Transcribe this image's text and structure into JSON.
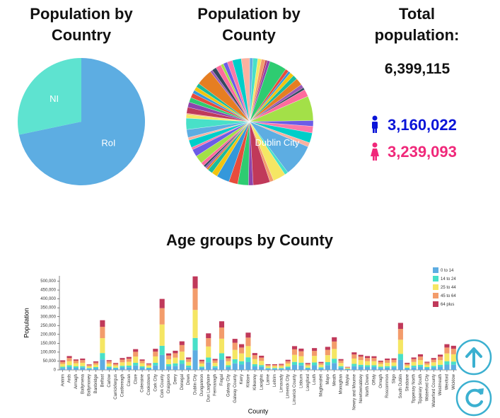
{
  "chart_data": [
    {
      "type": "pie",
      "title": "Population by Country",
      "categories": [
        "RoI",
        "NI"
      ],
      "values": [
        4588252,
        1810863
      ],
      "colors": [
        "#5dade2",
        "#5ee3d0"
      ]
    },
    {
      "type": "pie",
      "title": "Population by County",
      "label": "Dublin City",
      "colors": [
        "#5dade2",
        "#48e0c8",
        "#f5e663",
        "#f39c6b",
        "#c0395a",
        "#8e44ad",
        "#2ecc71",
        "#e74c3c",
        "#3498db",
        "#f1c40f",
        "#1abc9c",
        "#e67e22",
        "#9b59b6",
        "#34495e",
        "#ff6b9d",
        "#a3e048",
        "#6c5ce7",
        "#fd79a8",
        "#00cec9",
        "#fab1a0"
      ]
    },
    {
      "type": "bar",
      "title": "Age groups by County",
      "xlabel": "County",
      "ylabel": "Population",
      "stacked": true,
      "legend": "top-right",
      "ylim": [
        0,
        530000
      ],
      "yticks": [
        0,
        {
          "value": 50000,
          "label": "50,000"
        },
        {
          "value": 100000,
          "label": "100,000"
        },
        {
          "value": 150000,
          "label": "150,000"
        },
        {
          "value": 200000,
          "label": "200,000"
        },
        {
          "value": 250000,
          "label": "250,000"
        },
        {
          "value": 300000,
          "label": "300,000"
        },
        {
          "value": 350000,
          "label": "350,000"
        },
        {
          "value": 400000,
          "label": "400,000"
        },
        {
          "value": 450000,
          "label": "450,000"
        },
        {
          "value": 500000,
          "label": "500,000"
        }
      ],
      "categories": [
        "Antrim",
        "Ards",
        "Armagh",
        "Ballymena",
        "Ballymoney",
        "Banbridge",
        "Belfast",
        "Carlow",
        "Carrickfergus",
        "Castlereagh",
        "Cavan",
        "Clare",
        "Coleraine",
        "Cookstown",
        "Cork City",
        "Cork County",
        "Craigavon",
        "Derry",
        "Donegal",
        "Down",
        "Dublin City",
        "Dungannon",
        "Dun Laoghaire",
        "Fermanagh",
        "Fingal",
        "Galway City",
        "Galway County",
        "Kerry",
        "Kildare",
        "Kilkenny",
        "Laoighis",
        "Larne",
        "Leitrim",
        "Limavady",
        "Limerick City",
        "Limerick County",
        "Lisburn",
        "Longford",
        "Louth",
        "Magherafelt",
        "Mayo",
        "Meath",
        "Monaghan",
        "Moyle",
        "Newry and Mourne",
        "Newtownabbey",
        "North Down",
        "Offaly",
        "Omagh",
        "Roscommon",
        "Sligo",
        "South Dublin",
        "Strabane",
        "Tipperary North",
        "Tipperary South",
        "Waterford City",
        "Waterford County",
        "Westmeath",
        "Wexford",
        "Wicklow"
      ],
      "series": [
        {
          "name": "0 to 14",
          "color": "#5dade2",
          "values": [
            11000,
            16000,
            12000,
            13000,
            7000,
            10000,
            59000,
            12000,
            8000,
            14000,
            15000,
            25000,
            12000,
            8000,
            25000,
            84000,
            20000,
            23000,
            34000,
            15000,
            111000,
            12000,
            43000,
            13000,
            58000,
            16000,
            37000,
            30000,
            44000,
            20000,
            17000,
            7000,
            7000,
            7000,
            12000,
            28000,
            25000,
            8000,
            26000,
            9000,
            27000,
            39000,
            13000,
            4000,
            21000,
            18000,
            16000,
            16000,
            11000,
            13000,
            14000,
            56000,
            8000,
            15000,
            18000,
            10000,
            14000,
            18000,
            30000,
            29000
          ]
        },
        {
          "name": "14 to 24",
          "color": "#48e0c8",
          "values": [
            7000,
            10000,
            8000,
            8000,
            4000,
            6000,
            36000,
            7000,
            5000,
            9000,
            9000,
            15000,
            8000,
            5000,
            15000,
            52000,
            12000,
            14000,
            21000,
            9000,
            69000,
            7000,
            27000,
            8000,
            36000,
            10000,
            23000,
            19000,
            27000,
            12000,
            10000,
            4000,
            4000,
            4000,
            7000,
            17000,
            16000,
            5000,
            16000,
            6000,
            17000,
            24000,
            8000,
            2000,
            13000,
            11000,
            10000,
            10000,
            7000,
            8000,
            8000,
            34000,
            5000,
            9000,
            11000,
            6000,
            9000,
            11000,
            19000,
            18000
          ]
        },
        {
          "name": "25 to 44",
          "color": "#f5e663",
          "values": [
            16000,
            23000,
            18000,
            19000,
            9000,
            14000,
            84000,
            17000,
            12000,
            20000,
            22000,
            35000,
            18000,
            11000,
            36000,
            120000,
            28000,
            32000,
            48000,
            21000,
            158000,
            17000,
            62000,
            19000,
            82000,
            23000,
            53000,
            44000,
            63000,
            29000,
            24000,
            10000,
            10000,
            10000,
            17000,
            40000,
            36000,
            12000,
            37000,
            14000,
            39000,
            55000,
            18000,
            5000,
            30000,
            26000,
            23000,
            23000,
            16000,
            19000,
            20000,
            80000,
            12000,
            21000,
            26000,
            14000,
            20000,
            26000,
            44000,
            41000
          ]
        },
        {
          "name": "45 to 64",
          "color": "#f39c6b",
          "values": [
            12000,
            18000,
            14000,
            15000,
            7000,
            11000,
            64000,
            13000,
            9000,
            15000,
            17000,
            27000,
            14000,
            9000,
            27000,
            92000,
            21000,
            25000,
            37000,
            16000,
            121000,
            13000,
            47000,
            14000,
            63000,
            17000,
            40000,
            33000,
            48000,
            22000,
            18000,
            7000,
            7000,
            8000,
            13000,
            31000,
            28000,
            9000,
            28000,
            10000,
            30000,
            42000,
            14000,
            4000,
            23000,
            20000,
            18000,
            18000,
            12000,
            15000,
            15000,
            61000,
            9000,
            16000,
            20000,
            11000,
            15000,
            20000,
            33000,
            31000
          ]
        },
        {
          "name": "64 plus",
          "color": "#c0395a",
          "values": [
            8000,
            11000,
            7000,
            9000,
            4000,
            7000,
            37000,
            6000,
            5000,
            9000,
            10000,
            15000,
            7000,
            4000,
            16000,
            52000,
            12000,
            14000,
            21000,
            9000,
            68000,
            8000,
            27000,
            8000,
            35000,
            10000,
            22000,
            19000,
            28000,
            12000,
            11000,
            4000,
            4000,
            5000,
            8000,
            18000,
            15000,
            5000,
            16000,
            6000,
            17000,
            24000,
            8000,
            2000,
            12000,
            10000,
            11000,
            10000,
            6000,
            9000,
            8000,
            34000,
            6000,
            9000,
            13000,
            5000,
            9000,
            11000,
            19000,
            17000
          ]
        }
      ]
    }
  ],
  "summary": {
    "title": "Total population:",
    "total": "6,399,115",
    "male": "3,160,022",
    "female": "3,239,093"
  }
}
